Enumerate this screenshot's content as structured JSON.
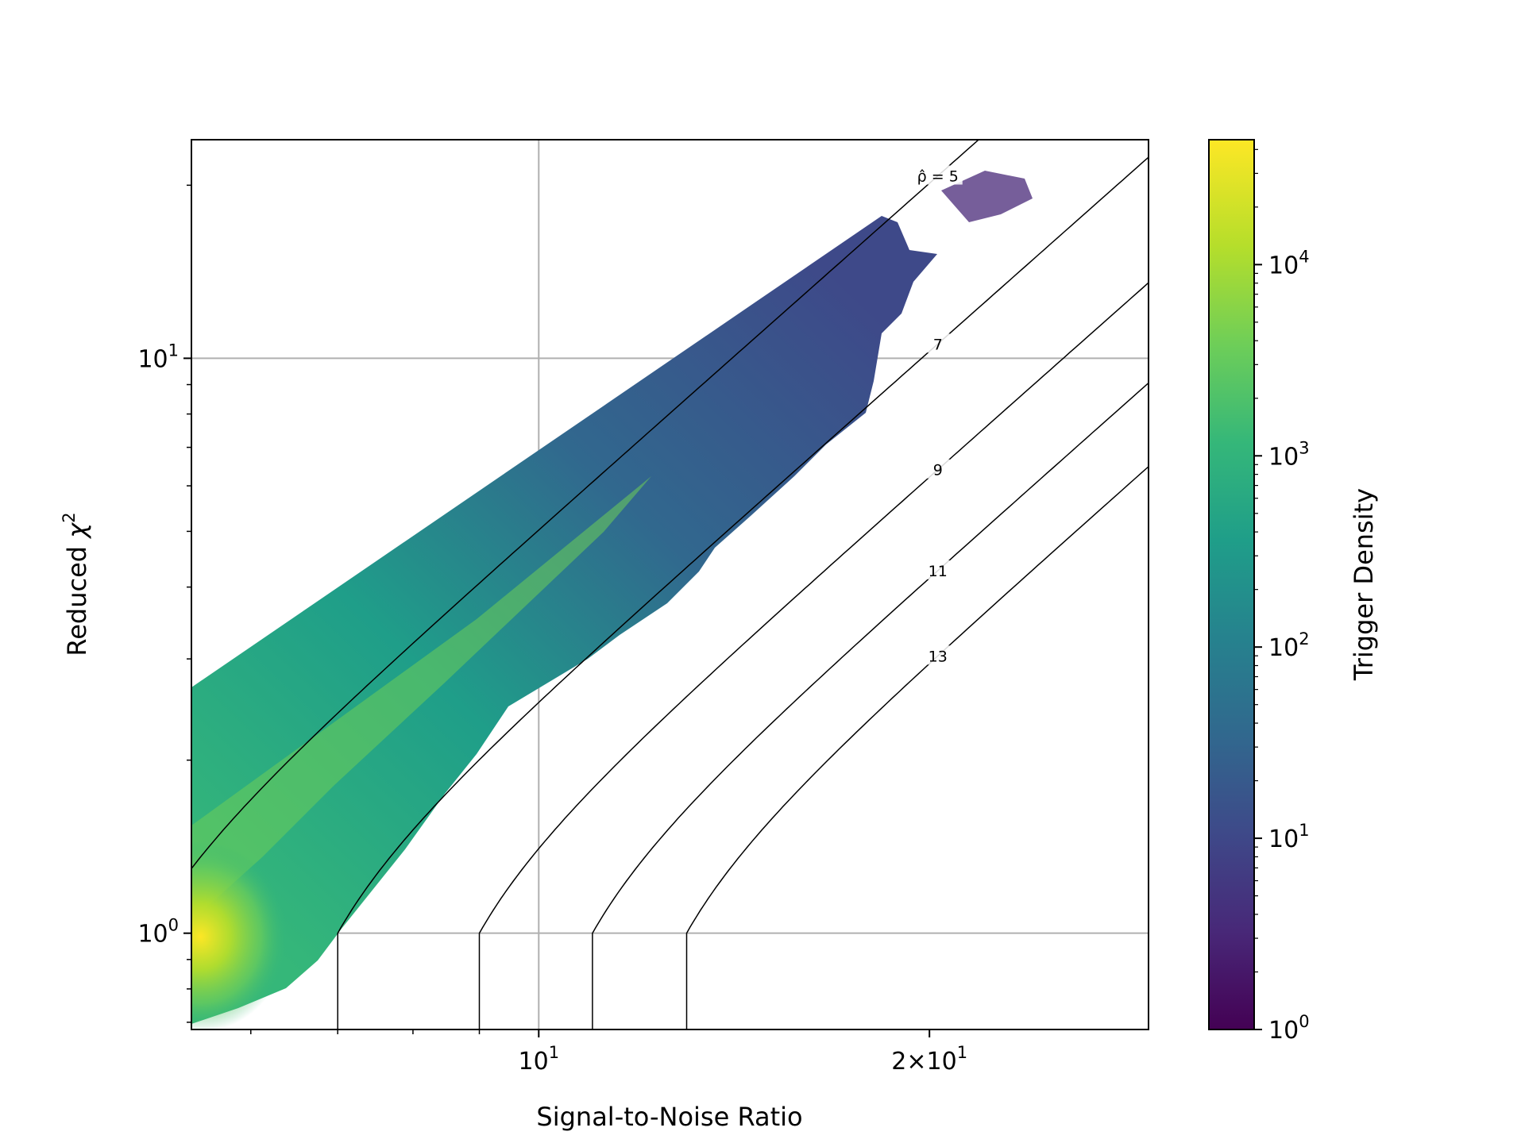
{
  "chart_data": {
    "type": "heatmap",
    "subtype": "hexbin density with contour overlay",
    "xlabel": "Signal-to-Noise Ratio",
    "ylabel": "Reduced χ²",
    "x_scale": "log",
    "y_scale": "log",
    "xlim": [
      5.4,
      29.5
    ],
    "ylim": [
      0.68,
      24
    ],
    "x_ticks": [
      {
        "value": 10,
        "base": "10",
        "exp": "1",
        "mult": ""
      },
      {
        "value": 20,
        "base": "10",
        "exp": "1",
        "mult": "2×"
      }
    ],
    "y_ticks": [
      {
        "value": 1,
        "base": "10",
        "exp": "0"
      },
      {
        "value": 10,
        "base": "10",
        "exp": "1"
      }
    ],
    "grid": true,
    "colorbar": {
      "label": "Trigger Density",
      "scale": "log",
      "range": [
        1,
        45000
      ],
      "colormap": "viridis",
      "ticks": [
        {
          "value": 1,
          "base": "10",
          "exp": "0"
        },
        {
          "value": 10,
          "base": "10",
          "exp": "1"
        },
        {
          "value": 100,
          "base": "10",
          "exp": "2"
        },
        {
          "value": 1000,
          "base": "10",
          "exp": "3"
        },
        {
          "value": 10000,
          "base": "10",
          "exp": "4"
        }
      ]
    },
    "contours": [
      {
        "rho": 5,
        "label": "ρ̂ = 5",
        "label_snr": 20.3
      },
      {
        "rho": 7,
        "label": "7",
        "label_snr": 20.3
      },
      {
        "rho": 9,
        "label": "9",
        "label_snr": 20.3
      },
      {
        "rho": 11,
        "label": "11",
        "label_snr": 20.3
      },
      {
        "rho": 13,
        "label": "13",
        "label_snr": 20.3
      }
    ],
    "density_points": [
      {
        "snr": 5.5,
        "chi2": 1.05,
        "density": 40000
      },
      {
        "snr": 5.5,
        "chi2": 1.3,
        "density": 15000
      },
      {
        "snr": 5.5,
        "chi2": 0.85,
        "density": 3000
      },
      {
        "snr": 5.5,
        "chi2": 2.0,
        "density": 300
      },
      {
        "snr": 5.5,
        "chi2": 2.6,
        "density": 80
      },
      {
        "snr": 6.0,
        "chi2": 1.2,
        "density": 8000
      },
      {
        "snr": 6.0,
        "chi2": 1.6,
        "density": 3000
      },
      {
        "snr": 6.5,
        "chi2": 1.5,
        "density": 2000
      },
      {
        "snr": 7.0,
        "chi2": 2.0,
        "density": 1500
      },
      {
        "snr": 8.0,
        "chi2": 2.5,
        "density": 700
      },
      {
        "snr": 10.0,
        "chi2": 3.5,
        "density": 300
      },
      {
        "snr": 12.0,
        "chi2": 5.0,
        "density": 100
      },
      {
        "snr": 15.0,
        "chi2": 8.0,
        "density": 30
      },
      {
        "snr": 18.0,
        "chi2": 13.0,
        "density": 8
      },
      {
        "snr": 22.0,
        "chi2": 21.0,
        "density": 2
      }
    ]
  }
}
